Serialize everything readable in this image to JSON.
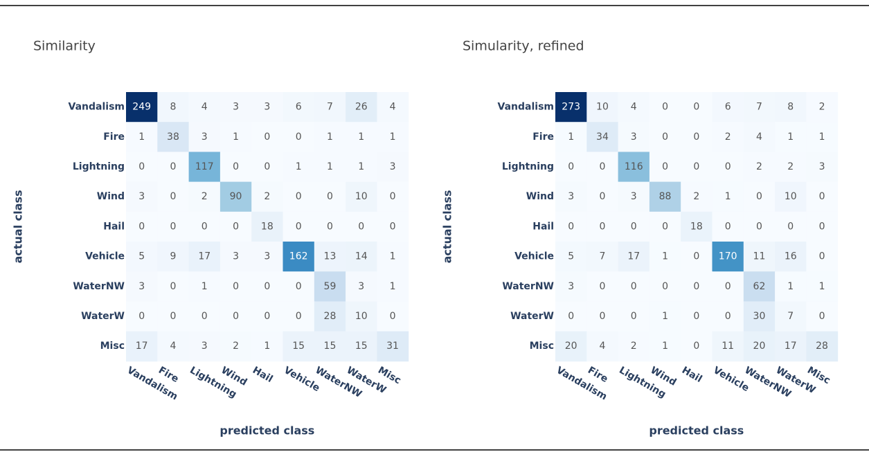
{
  "chart_data": [
    {
      "type": "heatmap",
      "title": "Similarity",
      "xlabel": "predicted class",
      "ylabel": "actual class",
      "x": [
        "Vandalism",
        "Fire",
        "Lightning",
        "Wind",
        "Hail",
        "Vehicle",
        "WaterNW",
        "WaterW",
        "Misc"
      ],
      "y": [
        "Vandalism",
        "Fire",
        "Lightning",
        "Wind",
        "Hail",
        "Vehicle",
        "WaterNW",
        "WaterW",
        "Misc"
      ],
      "colorscale": [
        "#f7fbff",
        "#deebf7",
        "#c6dbef",
        "#9ecae1",
        "#6baed6",
        "#4292c6",
        "#2171b5",
        "#08519c",
        "#08306b"
      ],
      "values": [
        [
          249,
          8,
          4,
          3,
          3,
          6,
          7,
          26,
          4
        ],
        [
          1,
          38,
          3,
          1,
          0,
          0,
          1,
          1,
          1
        ],
        [
          0,
          0,
          117,
          0,
          0,
          1,
          1,
          1,
          3
        ],
        [
          3,
          0,
          2,
          90,
          2,
          0,
          0,
          10,
          0
        ],
        [
          0,
          0,
          0,
          0,
          18,
          0,
          0,
          0,
          0
        ],
        [
          5,
          9,
          17,
          3,
          3,
          162,
          13,
          14,
          1
        ],
        [
          3,
          0,
          1,
          0,
          0,
          0,
          59,
          3,
          1
        ],
        [
          0,
          0,
          0,
          0,
          0,
          0,
          28,
          10,
          0
        ],
        [
          17,
          4,
          3,
          2,
          1,
          15,
          15,
          15,
          31
        ]
      ]
    },
    {
      "type": "heatmap",
      "title": "Simularity, refined",
      "xlabel": "predicted class",
      "ylabel": "actual class",
      "x": [
        "Vandalism",
        "Fire",
        "Lightning",
        "Wind",
        "Hail",
        "Vehicle",
        "WaterNW",
        "WaterW",
        "Misc"
      ],
      "y": [
        "Vandalism",
        "Fire",
        "Lightning",
        "Wind",
        "Hail",
        "Vehicle",
        "WaterNW",
        "WaterW",
        "Misc"
      ],
      "colorscale": [
        "#f7fbff",
        "#deebf7",
        "#c6dbef",
        "#9ecae1",
        "#6baed6",
        "#4292c6",
        "#2171b5",
        "#08519c",
        "#08306b"
      ],
      "values": [
        [
          273,
          10,
          4,
          0,
          0,
          6,
          7,
          8,
          2
        ],
        [
          1,
          34,
          3,
          0,
          0,
          2,
          4,
          1,
          1
        ],
        [
          0,
          0,
          116,
          0,
          0,
          0,
          2,
          2,
          3
        ],
        [
          3,
          0,
          3,
          88,
          2,
          1,
          0,
          10,
          0
        ],
        [
          0,
          0,
          0,
          0,
          18,
          0,
          0,
          0,
          0
        ],
        [
          5,
          7,
          17,
          1,
          0,
          170,
          11,
          16,
          0
        ],
        [
          3,
          0,
          0,
          0,
          0,
          0,
          62,
          1,
          1
        ],
        [
          0,
          0,
          0,
          1,
          0,
          0,
          30,
          7,
          0
        ],
        [
          20,
          4,
          2,
          1,
          0,
          11,
          20,
          17,
          28
        ]
      ]
    }
  ]
}
